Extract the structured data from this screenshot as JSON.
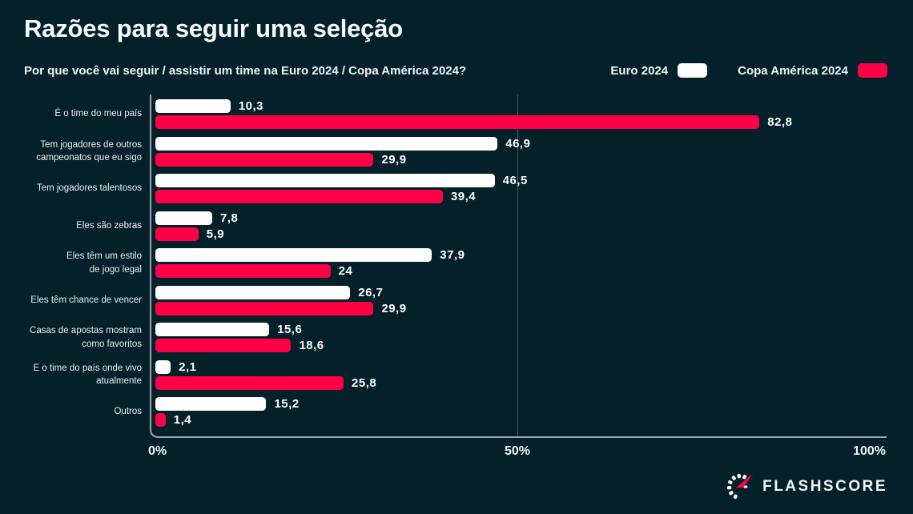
{
  "page": {
    "background": "#04202a"
  },
  "header": {
    "title": "Razões para seguir uma seleção",
    "subtitle": "Por que você vai seguir / assistir um time na Euro 2024 / Copa América 2024?"
  },
  "legend": {
    "items": [
      {
        "label": "Euro 2024",
        "color": "#ffffff"
      },
      {
        "label": "Copa América 2024",
        "color": "#ff0046"
      }
    ]
  },
  "chart_data": {
    "type": "bar",
    "orientation": "horizontal",
    "title": "Razões para seguir uma seleção",
    "categories": [
      "É o time do meu país",
      "Tem jogadores de outros\ncampeonatos que eu sigo",
      "Tem jogadores talentosos",
      "Eles são zebras",
      "Eles têm um estilo\nde jogo legal",
      "Eles têm chance de vencer",
      "Casas de apostas mostram\ncomo favoritos",
      "E o time do país onde vivo\natualmente",
      "Outros"
    ],
    "series": [
      {
        "name": "Euro 2024",
        "color": "#ffffff",
        "values": [
          10.3,
          46.9,
          46.5,
          7.8,
          37.9,
          26.7,
          15.6,
          2.1,
          15.2
        ],
        "labels": [
          "10,3",
          "46,9",
          "46,5",
          "7,8",
          "37,9",
          "26,7",
          "15,6",
          "2,1",
          "15,2"
        ]
      },
      {
        "name": "Copa América 2024",
        "color": "#ff0046",
        "values": [
          82.8,
          29.9,
          39.4,
          5.9,
          24,
          29.9,
          18.6,
          25.8,
          1.4
        ],
        "labels": [
          "82,8",
          "29,9",
          "39,4",
          "5,9",
          "24",
          "29,9",
          "18,6",
          "25,8",
          "1,4"
        ]
      }
    ],
    "xlim": [
      0,
      100
    ],
    "xticks": [
      "0%",
      "50%",
      "100%"
    ],
    "grid": "vertical line at 50% only",
    "legend_position": "top-right",
    "value_labels": "outside bar end, comma decimal separator"
  },
  "footer": {
    "brand": "FLASHSCORE",
    "brand_color": "#ff0046"
  }
}
